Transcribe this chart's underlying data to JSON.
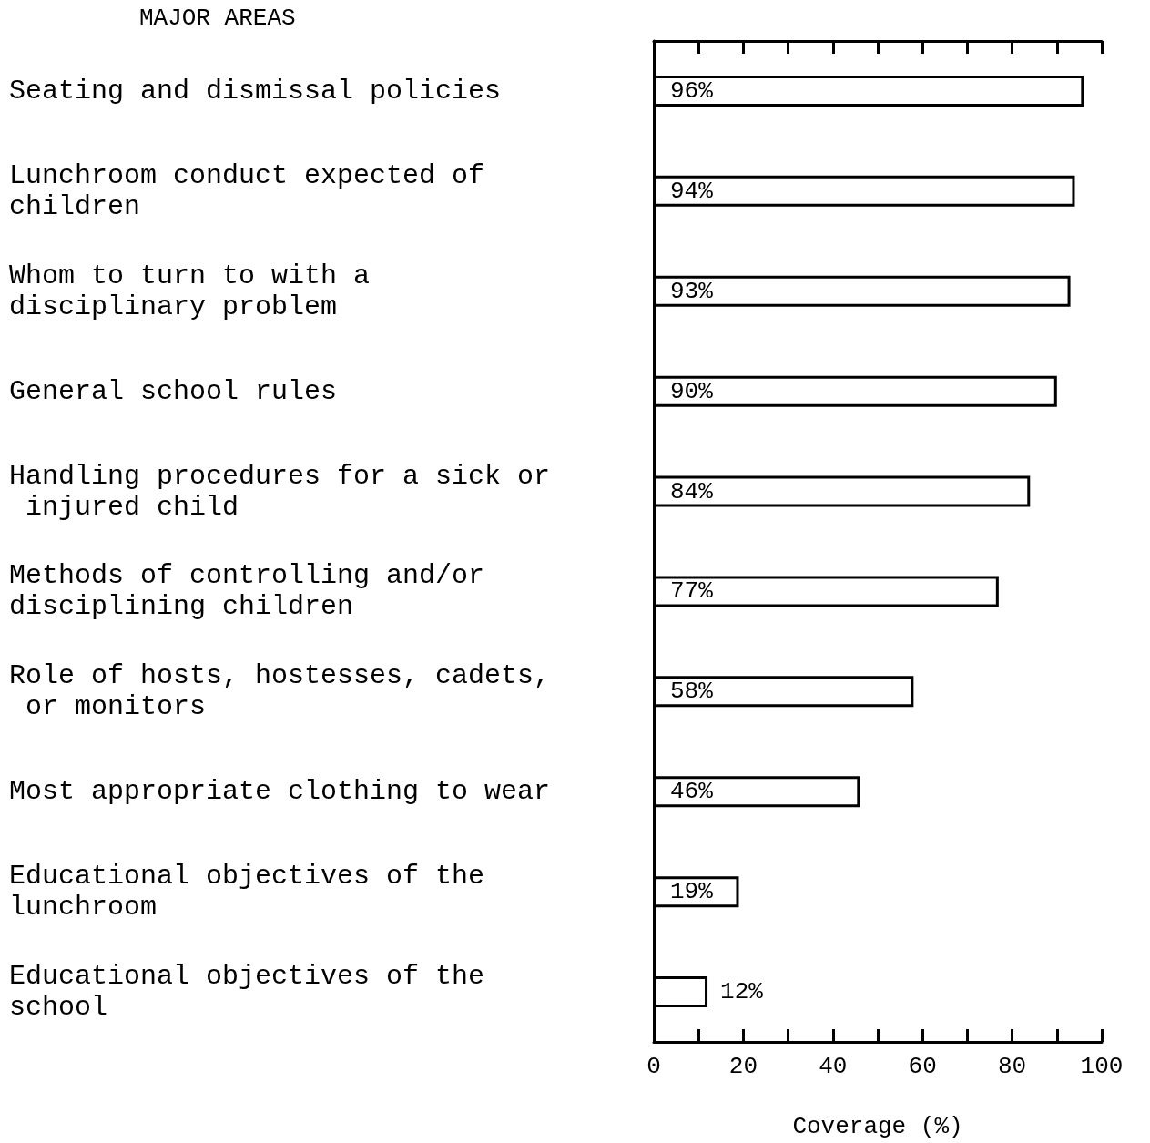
{
  "chart_data": {
    "type": "bar",
    "orientation": "horizontal",
    "ylabel": "MAJOR AREAS",
    "xlabel": "Coverage (%)",
    "categories": [
      "Seating and dismissal policies",
      "Lunchroom conduct expected of children",
      "Whom to turn to with a disciplinary problem",
      "General school rules",
      "Handling procedures for a sick or injured child",
      "Methods of controlling and/or disciplining children",
      "Role of hosts, hostesses, cadets, or monitors",
      "Most appropriate clothing to wear",
      "Educational objectives of the lunchroom",
      "Educational objectives of the school"
    ],
    "values": [
      96,
      94,
      93,
      90,
      84,
      77,
      58,
      46,
      19,
      12
    ],
    "value_labels": [
      "96%",
      "94%",
      "93%",
      "90%",
      "84%",
      "77%",
      "58%",
      "46%",
      "19%",
      "12%"
    ],
    "color": "#ffffff",
    "xlim": [
      0,
      100
    ],
    "xticks": [
      0,
      {
        "value": 10,
        "label": null
      },
      20,
      {
        "value": 30,
        "label": null
      },
      40,
      {
        "value": 50,
        "label": null
      },
      60,
      {
        "value": 70,
        "label": null
      },
      80,
      {
        "value": 90,
        "label": null
      },
      100
    ],
    "grid": false
  }
}
